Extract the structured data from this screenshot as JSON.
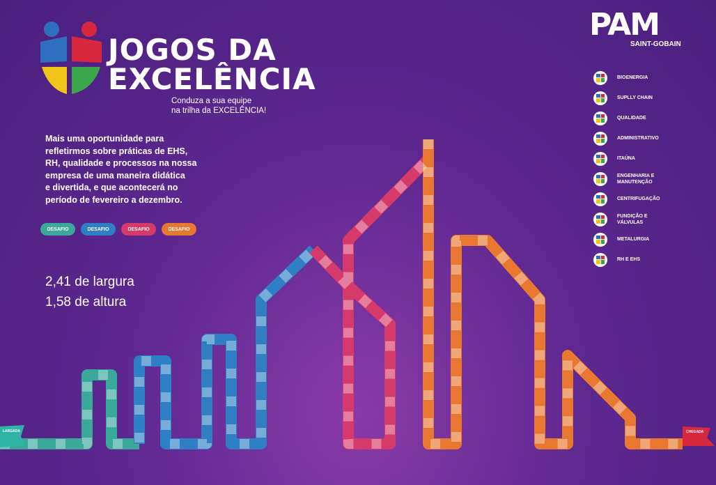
{
  "logo": {
    "line1": "JOGOS DA",
    "line2": "EXCELÊNCIA",
    "tagline1": "Conduza a sua equipe",
    "tagline2": "na trilha da EXCELÊNCIA!"
  },
  "brand": {
    "name": "PAM",
    "group": "SAINT-GOBAIN"
  },
  "intro": [
    "Mais uma oportunidade para",
    "refletirmos sobre práticas de EHS,",
    "RH, qualidade e processos na nossa",
    "empresa de uma maneira didática",
    "e divertida, e que acontecerá no",
    "período de fevereiro  a dezembro."
  ],
  "badges": [
    "DESAFIO",
    "DESAFIO",
    "DESAFIO",
    "DESAFIO"
  ],
  "dimensions": [
    "2,41 de largura",
    "1,58 de altura"
  ],
  "teams": [
    [
      "BIOENERGIA"
    ],
    [
      "SUPLLY CHAIN"
    ],
    [
      "QUALIDADE"
    ],
    [
      "ADMINISTRATIVO"
    ],
    [
      "ITAÚNA"
    ],
    [
      "ENGENHARIA E",
      "MANUTENÇÃO"
    ],
    [
      "CENTRIFUGAÇÃO"
    ],
    [
      "FUNDIÇÃO E",
      "VÁLVULAS"
    ],
    [
      "METALURGIA"
    ],
    [
      "RH E EHS"
    ]
  ],
  "flags": {
    "start": "LARGADA",
    "finish": "CHEGADA"
  }
}
